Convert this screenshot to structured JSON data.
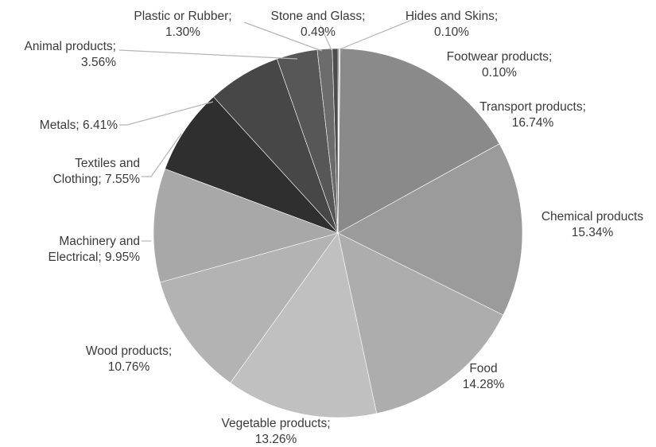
{
  "chart_data": {
    "type": "pie",
    "title": "",
    "start_angle_deg": 0,
    "direction": "clockwise",
    "legend": "none",
    "slices": [
      {
        "name": "Hides and Skins",
        "value": 0.1,
        "label": [
          "Hides and Skins;",
          "0.10%"
        ],
        "color": "#5e5e5e"
      },
      {
        "name": "Footwear products",
        "value": 0.1,
        "label": [
          "Footwear products;",
          "0.10%"
        ],
        "color": "#bdbdbd"
      },
      {
        "name": "Transport products",
        "value": 16.74,
        "label": [
          "Transport products;",
          "16.74%"
        ],
        "color": "#8a8a8a"
      },
      {
        "name": "Chemical products",
        "value": 15.34,
        "label": [
          "Chemical products",
          "15.34%"
        ],
        "color": "#9b9b9b"
      },
      {
        "name": "Food",
        "value": 14.28,
        "label": [
          "Food",
          "14.28%"
        ],
        "color": "#adadae"
      },
      {
        "name": "Vegetable products",
        "value": 13.26,
        "label": [
          "Vegetable products;",
          "13.26%"
        ],
        "color": "#c0c0c0"
      },
      {
        "name": "Wood products",
        "value": 10.76,
        "label": [
          "Wood products;",
          "10.76%"
        ],
        "color": "#b3b3b3"
      },
      {
        "name": "Machinery and Electrical",
        "value": 9.95,
        "label": [
          "Machinery and",
          "Electrical; 9.95%"
        ],
        "color": "#a8a8a8"
      },
      {
        "name": "Textiles and Clothing",
        "value": 7.55,
        "label": [
          "Textiles and",
          "Clothing; 7.55%"
        ],
        "color": "#2f2f2f"
      },
      {
        "name": "Metals",
        "value": 6.41,
        "label": [
          "Metals; 6.41%"
        ],
        "color": "#474747"
      },
      {
        "name": "Animal products",
        "value": 3.56,
        "label": [
          "Animal products;",
          "3.56%"
        ],
        "color": "#575757"
      },
      {
        "name": "Plastic or Rubber",
        "value": 1.3,
        "label": [
          "Plastic or Rubber;",
          "1.30%"
        ],
        "color": "#6c6c6c"
      },
      {
        "name": "Stone and Glass",
        "value": 0.49,
        "label": [
          "Stone and Glass;",
          "0.49%"
        ],
        "color": "#4d4d4d"
      }
    ]
  }
}
